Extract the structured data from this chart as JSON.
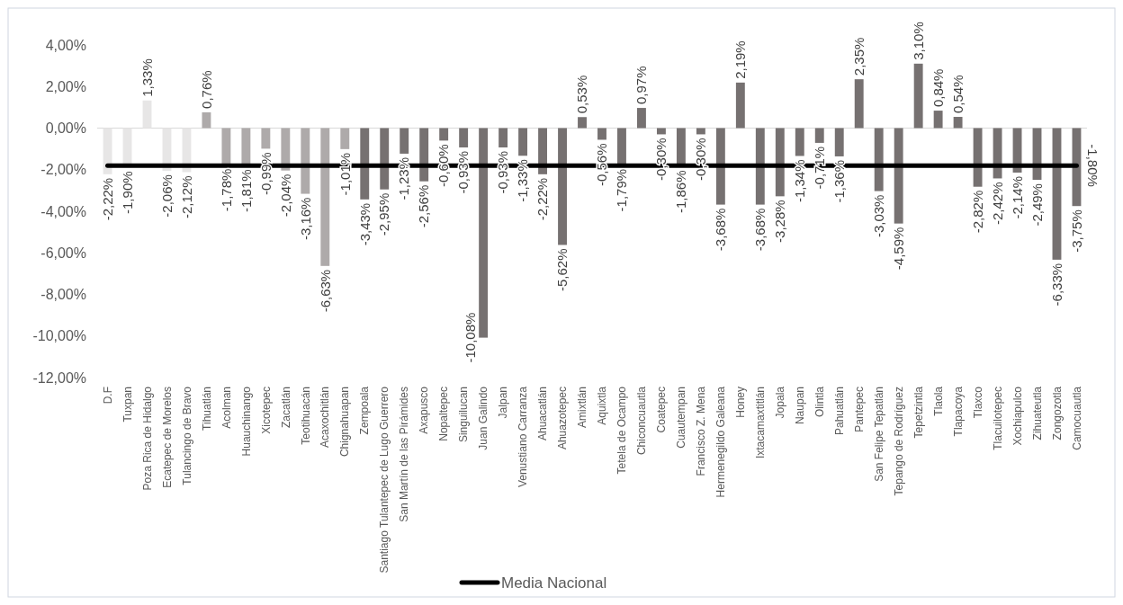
{
  "chart_data": {
    "type": "bar",
    "categories": [
      "D.F",
      "Tuxpan",
      "Poza Rica de Hidalgo",
      "Ecatepec de Morelos",
      "Tulancingo de Bravo",
      "Tihuatlán",
      "Acolman",
      "Huauchinango",
      "Xicotepec",
      "Zacatlán",
      "Teotihuacán",
      "Acaxochitlán",
      "Chignahuapan",
      "Zempoala",
      "Santiago Tulantepec de Lugo Guerrero",
      "San Martín de las Pirámides",
      "Axapusco",
      "Nopaltepec",
      "Singuilucan",
      "Juan Galindo",
      "Jalpan",
      "Venustiano Carranza",
      "Ahuacatlán",
      "Ahuazotepec",
      "Amixtlán",
      "Aquixtla",
      "Tetela de Ocampo",
      "Chiconcuautla",
      "Coatepec",
      "Cuautempan",
      "Francisco Z. Mena",
      "Hermenegildo Galeana",
      "Honey",
      "Ixtacamaxtitlán",
      "Jopala",
      "Naupan",
      "Olintla",
      "Pahuatlán",
      "Pantepec",
      "San Felipe Tepatlán",
      "Tepango de Rodríguez",
      "Tepetzintla",
      "Tlaola",
      "Tlapacoya",
      "Tlaxco",
      "Tlacuilotepec",
      "Xochiapulco",
      "Zihuateutla",
      "Zongozotla",
      "Camocuautla"
    ],
    "series": [
      {
        "values": [
          -2.22,
          -1.9,
          1.33,
          -2.06,
          -2.12,
          0.76,
          -1.78,
          -1.81,
          -0.99,
          -2.04,
          -3.16,
          -6.63,
          -1.01,
          -3.43,
          -2.95,
          -1.23,
          -2.56,
          -0.6,
          -0.93,
          -10.08,
          -0.93,
          -1.33,
          -2.22,
          -5.62,
          0.53,
          -0.56,
          -1.79,
          0.97,
          -0.3,
          -1.86,
          -0.3,
          -3.68,
          2.19,
          -3.68,
          -3.28,
          -1.34,
          -0.71,
          -1.36,
          2.35,
          -3.03,
          -4.59,
          3.1,
          0.84,
          0.54,
          -2.82,
          -2.42,
          -2.14,
          -2.49,
          -6.33,
          -3.75
        ],
        "colors": [
          "#e7e6e6",
          "#e7e6e6",
          "#e7e6e6",
          "#e7e6e6",
          "#e7e6e6",
          "#aeaaaa",
          "#aeaaaa",
          "#aeaaaa",
          "#aeaaaa",
          "#aeaaaa",
          "#aeaaaa",
          "#aeaaaa",
          "#aeaaaa",
          "#767171",
          "#767171",
          "#767171",
          "#767171",
          "#767171",
          "#767171",
          "#767171",
          "#767171",
          "#767171",
          "#767171",
          "#767171",
          "#767171",
          "#767171",
          "#767171",
          "#767171",
          "#767171",
          "#767171",
          "#767171",
          "#767171",
          "#767171",
          "#767171",
          "#767171",
          "#767171",
          "#767171",
          "#767171",
          "#767171",
          "#767171",
          "#767171",
          "#767171",
          "#767171",
          "#767171",
          "#767171",
          "#767171",
          "#767171",
          "#767171",
          "#767171",
          "#767171"
        ],
        "value_labels": [
          "-2,22%",
          "-1,90%",
          "1,33%",
          "-2,06%",
          "-2,12%",
          "0,76%",
          "-1,78%",
          "-1,81%",
          "-0,99%",
          "-2,04%",
          "-3,16%",
          "-6,63%",
          "-1,01%",
          "-3,43%",
          "-2,95%",
          "-1,23%",
          "-2,56%",
          "-0,60%",
          "-0,93%",
          "-10,08%",
          "-0,93%",
          "-1,33%",
          "-2,22%",
          "-5,62%",
          "0,53%",
          "-0,56%",
          "-1,79%",
          "0,97%",
          "-0,30%",
          "-1,86%",
          "-0,30%",
          "-3,68%",
          "2,19%",
          "-3,68%",
          "-3,28%",
          "-1,34%",
          "-0,71%",
          "-1,36%",
          "2,35%",
          "-3,03%",
          "-4,59%",
          "3,10%",
          "0,84%",
          "0,54%",
          "-2,82%",
          "-2,42%",
          "-2,14%",
          "-2,49%",
          "-6,33%",
          "-3,75%"
        ]
      },
      {
        "type": "line",
        "name": "Media Nacional",
        "color": "#000000",
        "values": [
          -1.8,
          -1.8,
          -1.8,
          -1.8,
          -1.8,
          -1.8,
          -1.8,
          -1.8,
          -1.8,
          -1.8,
          -1.8,
          -1.8,
          -1.8,
          -1.8,
          -1.8,
          -1.8,
          -1.8,
          -1.8,
          -1.8,
          -1.8,
          -1.8,
          -1.8,
          -1.8,
          -1.8,
          -1.8,
          -1.8,
          -1.8,
          -1.8,
          -1.8,
          -1.8,
          -1.8,
          -1.8,
          -1.8,
          -1.8,
          -1.8,
          -1.8,
          -1.8,
          -1.8,
          -1.8,
          -1.8,
          -1.8,
          -1.8,
          -1.8,
          -1.8,
          -1.8,
          -1.8,
          -1.8,
          -1.8,
          -1.8,
          -1.8
        ],
        "value_labels": [
          null,
          null,
          null,
          null,
          null,
          null,
          null,
          null,
          null,
          null,
          null,
          null,
          null,
          null,
          null,
          null,
          null,
          null,
          null,
          null,
          null,
          null,
          null,
          null,
          null,
          null,
          null,
          null,
          null,
          null,
          null,
          null,
          null,
          null,
          null,
          null,
          null,
          null,
          null,
          null,
          null,
          null,
          null,
          null,
          null,
          null,
          null,
          null,
          null,
          "-1,80%"
        ]
      }
    ],
    "ylim": [
      -12,
      4
    ],
    "yticks": [
      {
        "value": 4,
        "label": "4,00%"
      },
      {
        "value": 2,
        "label": "2,00%"
      },
      {
        "value": 0,
        "label": "0,00%"
      },
      {
        "value": -2,
        "label": "-2,00%"
      },
      {
        "value": -4,
        "label": "-4,00%"
      },
      {
        "value": -6,
        "label": "-6,00%"
      },
      {
        "value": -8,
        "label": "-8,00%"
      },
      {
        "value": -10,
        "label": "-10,00%"
      },
      {
        "value": -12,
        "label": "-12,00%"
      }
    ],
    "legend": "bottom"
  }
}
